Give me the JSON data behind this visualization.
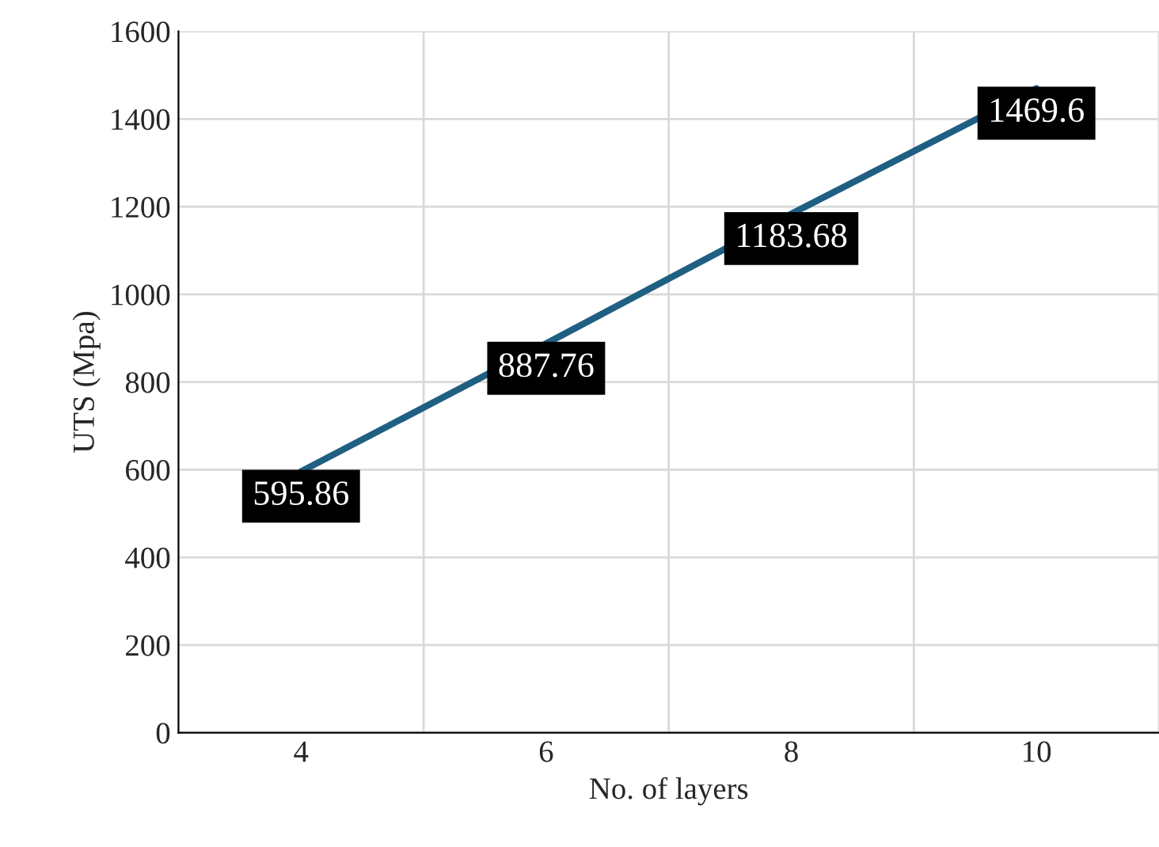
{
  "chart_data": {
    "type": "line",
    "xlabel": "No. of layers",
    "ylabel": "UTS (Mpa)",
    "categories": [
      "4",
      "6",
      "8",
      "10"
    ],
    "series": [
      {
        "color": "#1f5f82",
        "values": [
          595.86,
          887.76,
          1183.68,
          1469.6
        ]
      }
    ],
    "ylim": [
      0,
      1600
    ],
    "yticks": [
      0,
      200,
      400,
      600,
      800,
      1000,
      1200,
      1400,
      1600
    ],
    "grid": true,
    "data_labels": true,
    "line_style": "solid"
  }
}
